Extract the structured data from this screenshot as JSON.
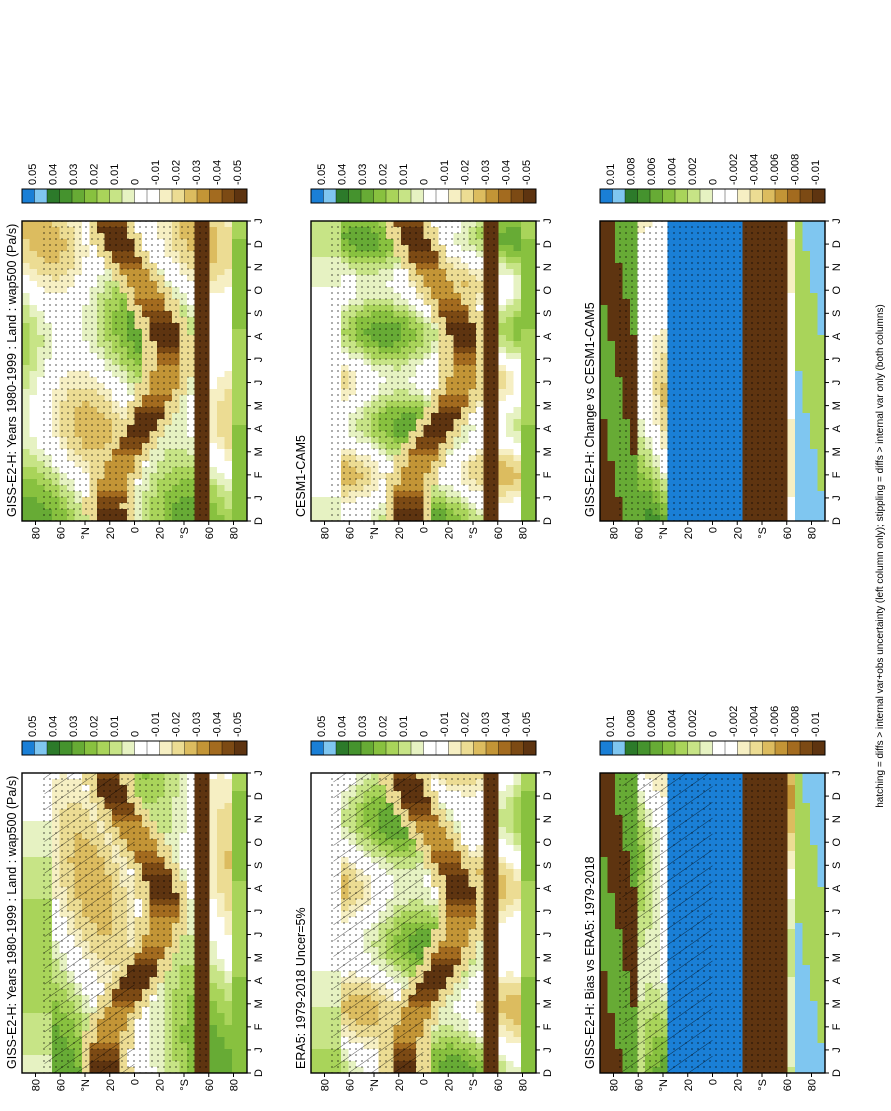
{
  "caption": "hatching = diffs > internal var+obs uncertainty (left column only); stippling = diffs > internal var only (both columns)",
  "months": [
    "D",
    "J",
    "F",
    "M",
    "A",
    "M",
    "J",
    "J",
    "A",
    "S",
    "O",
    "N",
    "D",
    "J"
  ],
  "lat_ticks": [
    "80",
    "60",
    "°N",
    "20",
    "0",
    "20",
    "°S",
    "60",
    "80"
  ],
  "palette": [
    "#1a7fd6",
    "#7fc6f0",
    "#2c7a2a",
    "#45932e",
    "#67ab35",
    "#88c13f",
    "#a9d45a",
    "#c7e486",
    "#e6f2c2",
    "#ffffff",
    "#ffffff",
    "#f6efc3",
    "#ecdc93",
    "#dcbc5f",
    "#c39536",
    "#a36b1f",
    "#7c4a14",
    "#5e3410"
  ],
  "colorbar_main": [
    "0.05",
    "0.04",
    "0.03",
    "0.02",
    "0.01",
    "0",
    "-0.01",
    "-0.02",
    "-0.03",
    "-0.04",
    "-0.05"
  ],
  "colorbar_diff": [
    "0.01",
    "0.008",
    "0.006",
    "0.004",
    "0.002",
    "0",
    "-0.002",
    "-0.004",
    "-0.006",
    "-0.008",
    "-0.01"
  ],
  "panels": [
    {
      "id": "model-left",
      "title": "GISS-E2-H: Years 1980-1999 : Land : wap500 (Pa/s)",
      "type": "main",
      "hatch": true
    },
    {
      "id": "model-right",
      "title": "GISS-E2-H: Years 1980-1999 : Land : wap500 (Pa/s)",
      "type": "main",
      "hatch": false
    },
    {
      "id": "obs",
      "title": "ERA5: 1979-2018 Uncer=5%",
      "type": "main",
      "hatch": true
    },
    {
      "id": "model2",
      "title": "CESM1-CAM5",
      "type": "main",
      "hatch": false
    },
    {
      "id": "bias",
      "title": "GISS-E2-H: Bias vs ERA5: 1979-2018",
      "type": "diff",
      "hatch": true
    },
    {
      "id": "change",
      "title": "GISS-E2-H: Change vs CESM1-CAM5",
      "type": "diff",
      "hatch": false
    }
  ],
  "chart_data": {
    "type": "heatmap",
    "x": [
      "D",
      "J",
      "F",
      "M",
      "A",
      "M",
      "J",
      "J",
      "A",
      "S",
      "O",
      "N",
      "D",
      "J"
    ],
    "y_ticks": [
      "80",
      "60",
      "°N",
      "20",
      "0",
      "20",
      "°S",
      "60",
      "80"
    ],
    "colorbar_main": [
      0.05,
      0.04,
      0.03,
      0.02,
      0.01,
      0,
      -0.01,
      -0.02,
      -0.03,
      -0.04,
      -0.05
    ],
    "colorbar_diff": [
      0.01,
      0.008,
      0.006,
      0.004,
      0.002,
      0,
      -0.002,
      -0.004,
      -0.006,
      -0.008,
      -0.01
    ]
  }
}
